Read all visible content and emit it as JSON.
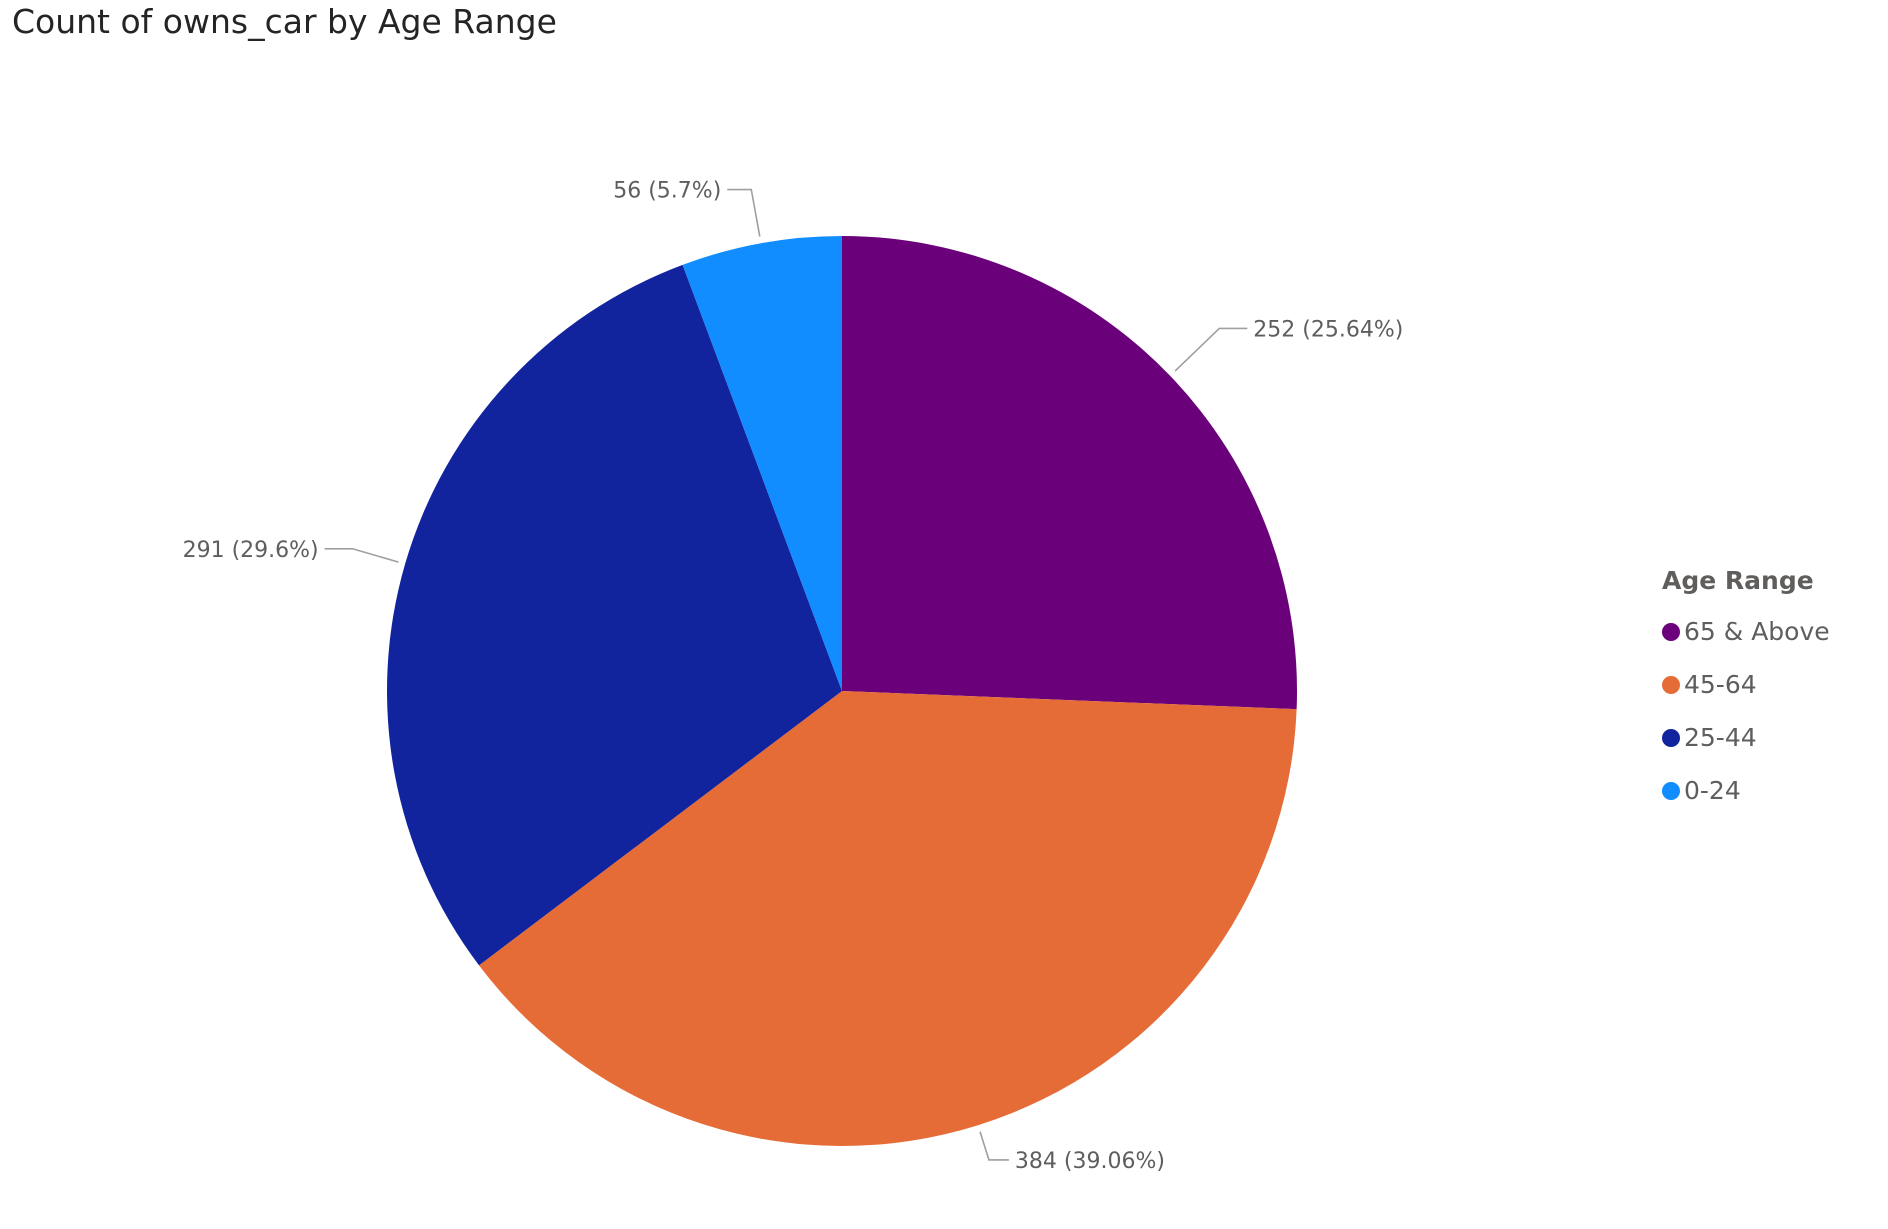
{
  "chart_data": {
    "type": "pie",
    "title": "Count of owns_car by Age Range",
    "legend_title": "Age Range",
    "legend_position": "right",
    "slices": [
      {
        "label": "65 & Above",
        "value": 252,
        "percent_label": "252 (25.64%)",
        "color": "#6b007b"
      },
      {
        "label": "45-64",
        "value": 384,
        "percent_label": "384 (39.06%)",
        "color": "#e66c37"
      },
      {
        "label": "25-44",
        "value": 291,
        "percent_label": "291 (29.6%)",
        "color": "#12239e"
      },
      {
        "label": "0-24",
        "value": 56,
        "percent_label": "56 (5.7%)",
        "color": "#118dff"
      }
    ]
  }
}
